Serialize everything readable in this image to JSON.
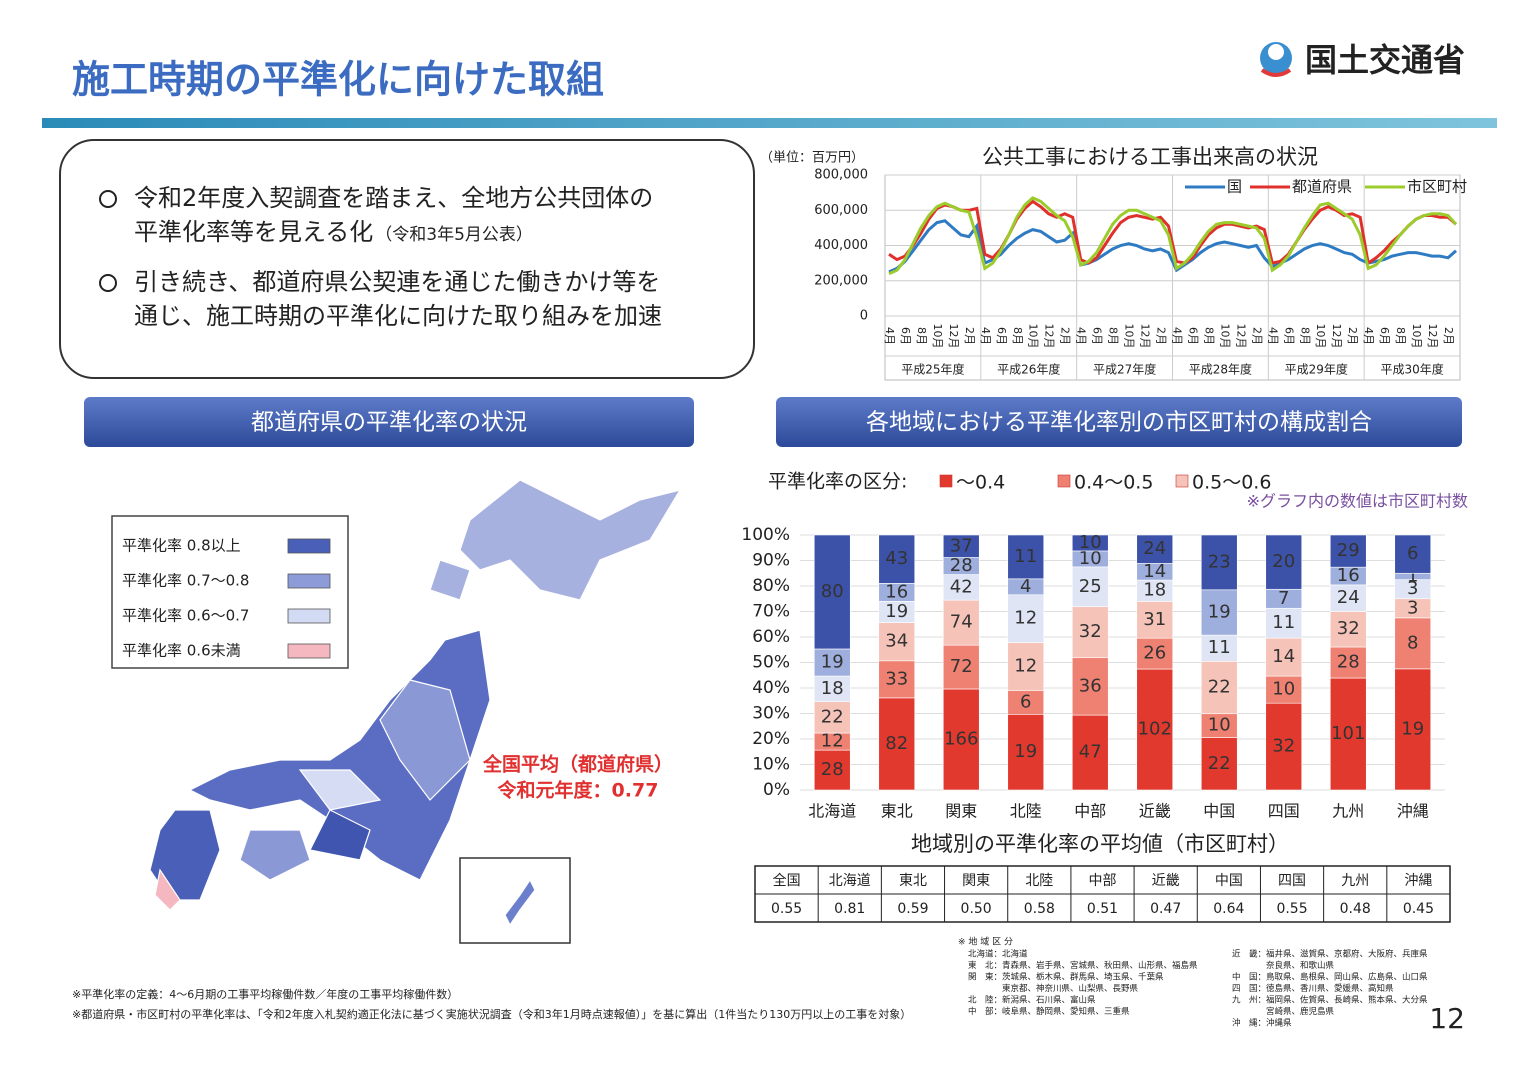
{
  "header": {
    "title": "施工時期の平準化に向けた取組",
    "logo": "国土交通省"
  },
  "bullets": [
    {
      "lines": [
        "令和2年度入契調査を踏まえ、全地方公共団体の",
        "平準化率等を見える化"
      ],
      "note": "（令和3年5月公表）"
    },
    {
      "lines": [
        "引き続き、都道府県公契連を通じた働きかけ等を",
        "通じ、施工時期の平準化に向けた取り組みを加速"
      ]
    }
  ],
  "map_section": {
    "heading": "都道府県の平準化率の状況",
    "legend": [
      {
        "label": "平準化率  0.8以上",
        "color": "#4a5fb8"
      },
      {
        "label": "平準化率  0.7～0.8",
        "color": "#8d9bd8"
      },
      {
        "label": "平準化率  0.6～0.7",
        "color": "#d3daf3"
      },
      {
        "label": "平準化率  0.6未満",
        "color": "#f5b8c0"
      }
    ],
    "annotation": [
      "全国平均（都道府県）",
      "令和元年度：0.77"
    ]
  },
  "chart_data": [
    {
      "type": "line",
      "title": "公共工事における工事出来高の状況",
      "y_label": "（単位：百万円）",
      "categories": [
        "4月",
        null,
        "6月",
        null,
        "8月",
        null,
        "10月",
        null,
        "12月",
        null,
        "2月",
        null,
        "4月",
        null,
        "6月",
        null,
        "8月",
        null,
        "10月",
        null,
        "12月",
        null,
        "2月",
        null,
        "4月",
        null,
        "6月",
        null,
        "8月",
        null,
        "10月",
        null,
        "12月",
        null,
        "2月",
        null,
        "4月",
        null,
        "6月",
        null,
        "8月",
        null,
        "10月",
        null,
        "12月",
        null,
        "2月",
        null,
        "4月",
        null,
        "6月",
        null,
        "8月",
        null,
        "10月",
        null,
        "12月",
        null,
        "2月",
        null,
        "4月",
        null,
        "6月",
        null,
        "8月",
        null,
        "10月",
        null,
        "12月",
        null,
        "2月",
        null
      ],
      "year_groups": [
        "平成25年度",
        "平成26年度",
        "平成27年度",
        "平成28年度",
        "平成29年度",
        "平成30年度"
      ],
      "ylim": [
        0,
        800000
      ],
      "yticks": [
        0,
        {
          "value": 200000,
          "label": "200,000"
        },
        {
          "value": 400000,
          "label": "400,000"
        },
        {
          "value": 600000,
          "label": "600,000"
        },
        {
          "value": 800000,
          "label": "800,000"
        }
      ],
      "grid": true,
      "legend": "top-right",
      "series": [
        {
          "name": "国",
          "color": "#2e7bc4",
          "values": [
            250000,
            270000,
            310000,
            370000,
            430000,
            490000,
            530000,
            540000,
            500000,
            460000,
            450000,
            510000,
            300000,
            320000,
            350000,
            400000,
            440000,
            470000,
            490000,
            480000,
            450000,
            420000,
            430000,
            470000,
            290000,
            300000,
            320000,
            350000,
            380000,
            400000,
            410000,
            400000,
            380000,
            370000,
            380000,
            360000,
            260000,
            290000,
            320000,
            360000,
            390000,
            410000,
            420000,
            410000,
            400000,
            390000,
            400000,
            330000,
            280000,
            300000,
            320000,
            350000,
            380000,
            400000,
            410000,
            400000,
            380000,
            360000,
            350000,
            320000,
            300000,
            310000,
            320000,
            340000,
            350000,
            360000,
            360000,
            350000,
            340000,
            340000,
            330000,
            370000
          ]
        },
        {
          "name": "都道府県",
          "color": "#e0302c",
          "values": [
            350000,
            320000,
            340000,
            400000,
            470000,
            550000,
            610000,
            630000,
            620000,
            600000,
            600000,
            610000,
            350000,
            330000,
            380000,
            460000,
            550000,
            610000,
            650000,
            620000,
            580000,
            560000,
            580000,
            560000,
            320000,
            300000,
            330000,
            400000,
            470000,
            530000,
            560000,
            570000,
            560000,
            550000,
            560000,
            510000,
            310000,
            300000,
            330000,
            400000,
            460000,
            500000,
            520000,
            520000,
            510000,
            500000,
            510000,
            490000,
            300000,
            310000,
            350000,
            420000,
            490000,
            550000,
            600000,
            620000,
            600000,
            570000,
            580000,
            560000,
            300000,
            330000,
            370000,
            420000,
            460000,
            510000,
            550000,
            570000,
            570000,
            560000,
            560000,
            520000
          ]
        },
        {
          "name": "市区町村",
          "color": "#9ccc2c",
          "values": [
            240000,
            260000,
            320000,
            410000,
            500000,
            570000,
            620000,
            640000,
            620000,
            600000,
            590000,
            450000,
            270000,
            300000,
            370000,
            460000,
            560000,
            630000,
            670000,
            650000,
            610000,
            570000,
            540000,
            450000,
            290000,
            310000,
            360000,
            440000,
            520000,
            570000,
            600000,
            600000,
            580000,
            560000,
            540000,
            460000,
            270000,
            300000,
            350000,
            420000,
            480000,
            520000,
            530000,
            530000,
            520000,
            510000,
            500000,
            440000,
            260000,
            290000,
            340000,
            420000,
            500000,
            570000,
            630000,
            640000,
            610000,
            580000,
            550000,
            460000,
            270000,
            290000,
            340000,
            400000,
            460000,
            510000,
            550000,
            570000,
            580000,
            580000,
            570000,
            520000
          ]
        }
      ]
    },
    {
      "type": "stacked_bar_100",
      "title": "各地域における平準化率別の市区町村の構成割合",
      "legend_title": "平準化率の区分:",
      "note": "※グラフ内の数値は市区町村数",
      "categories": [
        "北海道",
        "東北",
        "関東",
        "北陸",
        "中部",
        "近畿",
        "中国",
        "四国",
        "九州",
        "沖縄"
      ],
      "ylim": [
        0,
        100
      ],
      "yticks": [
        {
          "value": 0,
          "label": "0%"
        },
        {
          "value": 10,
          "label": "10%"
        },
        {
          "value": 20,
          "label": "20%"
        },
        {
          "value": 30,
          "label": "30%"
        },
        {
          "value": 40,
          "label": "40%"
        },
        {
          "value": 50,
          "label": "50%"
        },
        {
          "value": 60,
          "label": "60%"
        },
        {
          "value": 70,
          "label": "70%"
        },
        {
          "value": 80,
          "label": "80%"
        },
        {
          "value": 90,
          "label": "90%"
        },
        {
          "value": 100,
          "label": "100%"
        }
      ],
      "grid": true,
      "series": [
        {
          "name": "～0.4",
          "color": "#e2392f",
          "values": [
            28,
            82,
            166,
            19,
            47,
            102,
            22,
            32,
            101,
            19
          ]
        },
        {
          "name": "0.4～0.5",
          "color": "#ef8173",
          "values": [
            12,
            33,
            72,
            6,
            36,
            26,
            10,
            10,
            28,
            8
          ]
        },
        {
          "name": "0.5～0.6",
          "color": "#f6c3b9",
          "values": [
            22,
            34,
            74,
            12,
            32,
            31,
            22,
            14,
            32,
            3
          ]
        },
        {
          "color": "#dfe5f5",
          "values": [
            18,
            19,
            42,
            12,
            25,
            18,
            11,
            11,
            24,
            3
          ]
        },
        {
          "color": "#9eaedd",
          "values": [
            19,
            16,
            28,
            4,
            10,
            14,
            19,
            7,
            16,
            1
          ]
        },
        {
          "color": "#3c52a8",
          "values": [
            80,
            43,
            37,
            11,
            10,
            24,
            23,
            20,
            29,
            6
          ]
        }
      ]
    }
  ],
  "table": {
    "title": "地域別の平準化率の平均値（市区町村）",
    "header": [
      "全国",
      "北海道",
      "東北",
      "関東",
      "北陸",
      "中部",
      "近畿",
      "中国",
      "四国",
      "九州",
      "沖縄"
    ],
    "rows": [
      [
        "0.55",
        "0.81",
        "0.59",
        "0.50",
        "0.58",
        "0.51",
        "0.47",
        "0.64",
        "0.55",
        "0.48",
        "0.45"
      ]
    ]
  },
  "region_notes": {
    "title": "※ 地 域 区 分",
    "left": [
      "北海道：北海道",
      "東　北：青森県、岩手県、宮城県、秋田県、山形県、福島県",
      "関　東：茨城県、栃木県、群馬県、埼玉県、千葉県",
      "　　　　東京都、神奈川県、山梨県、長野県",
      "北　陸：新潟県、石川県、富山県",
      "中　部：岐阜県、静岡県、愛知県、三重県"
    ],
    "right": [
      "近　畿：福井県、滋賀県、京都府、大阪府、兵庫県",
      "　　　　奈良県、和歌山県",
      "中　国：鳥取県、島根県、岡山県、広島県、山口県",
      "四　国：徳島県、香川県、愛媛県、高知県",
      "九　州：福岡県、佐賀県、長崎県、熊本県、大分県",
      "　　　　宮崎県、鹿児島県",
      "沖　縄：沖縄県"
    ]
  },
  "footnotes": [
    "※平準化率の定義：4～6月期の工事平均稼働件数／年度の工事平均稼働件数）",
    "※都道府県・市区町村の平準化率は、「令和2年度入札契約適正化法に基づく実施状況調査（令和3年1月時点速報値）」を基に算出（1件当たり130万円以上の工事を対象）"
  ],
  "page_number": "12"
}
